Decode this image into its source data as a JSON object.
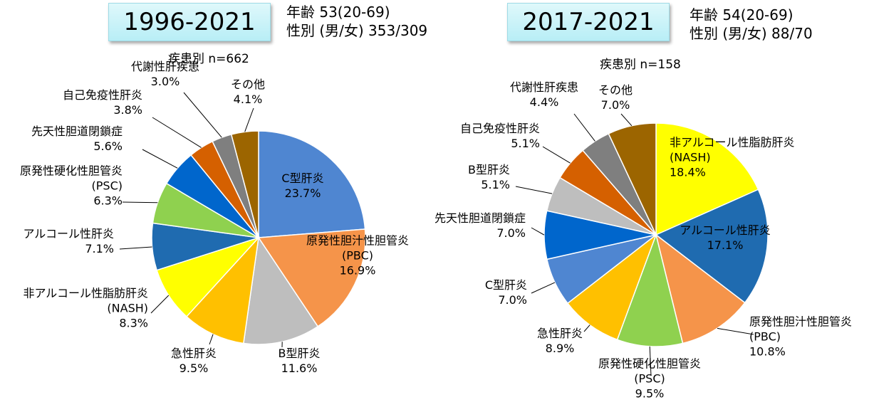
{
  "charts": [
    {
      "period": "1996-2021",
      "age_line": "年齢 53(20-69)",
      "sex_line": "性別 (男/女) 353/309",
      "subtitle": "疾患別 n=662"
    },
    {
      "period": "2017-2021",
      "age_line": "年齢 54(20-69)",
      "sex_line": "性別 (男/女) 88/70",
      "subtitle": "疾患別 n=158"
    }
  ],
  "chart_data": [
    {
      "type": "pie",
      "title": "1996-2021",
      "slices": [
        {
          "label": [
            "C型肝炎"
          ],
          "value": 23.7,
          "display": "23.7%",
          "color": "#4f86d1"
        },
        {
          "label": [
            "原発性胆汁性胆管炎",
            "(PBC)"
          ],
          "value": 16.9,
          "display": "16.9%",
          "color": "#f5944a"
        },
        {
          "label": [
            "B型肝炎"
          ],
          "value": 11.6,
          "display": "11.6%",
          "color": "#bebebe"
        },
        {
          "label": [
            "急性肝炎"
          ],
          "value": 9.5,
          "display": "9.5%",
          "color": "#ffc000"
        },
        {
          "label": [
            "非アルコール性脂肪肝炎",
            "(NASH)"
          ],
          "value": 8.3,
          "display": "8.3%",
          "color": "#ffff00"
        },
        {
          "label": [
            "アルコール性肝炎"
          ],
          "value": 7.1,
          "display": "7.1%",
          "color": "#1f6bb0"
        },
        {
          "label": [
            "原発性硬化性胆管炎",
            "(PSC)"
          ],
          "value": 6.3,
          "display": "6.3%",
          "color": "#8fd14f"
        },
        {
          "label": [
            "先天性胆道閉鎖症"
          ],
          "value": 5.6,
          "display": "5.6%",
          "color": "#0066cc"
        },
        {
          "label": [
            "自己免疫性肝炎"
          ],
          "value": 3.8,
          "display": "3.8%",
          "color": "#d56000"
        },
        {
          "label": [
            "代謝性肝疾患"
          ],
          "value": 3.0,
          "display": "3.0%",
          "color": "#7f7f7f"
        },
        {
          "label": [
            "その他"
          ],
          "value": 4.1,
          "display": "4.1%",
          "color": "#9c6500"
        }
      ]
    },
    {
      "type": "pie",
      "title": "2017-2021",
      "slices": [
        {
          "label": [
            "非アルコール性脂肪肝炎",
            "(NASH)"
          ],
          "value": 18.4,
          "display": "18.4%",
          "color": "#ffff00"
        },
        {
          "label": [
            "アルコール性肝炎"
          ],
          "value": 17.1,
          "display": "17.1%",
          "color": "#1f6bb0"
        },
        {
          "label": [
            "原発性胆汁性胆管炎",
            "(PBC)"
          ],
          "value": 10.8,
          "display": "10.8%",
          "color": "#f5944a"
        },
        {
          "label": [
            "原発性硬化性胆管炎",
            "(PSC)"
          ],
          "value": 9.5,
          "display": "9.5%",
          "color": "#8fd14f"
        },
        {
          "label": [
            "急性肝炎"
          ],
          "value": 8.9,
          "display": "8.9%",
          "color": "#ffc000"
        },
        {
          "label": [
            "C型肝炎"
          ],
          "value": 7.0,
          "display": "7.0%",
          "color": "#4f86d1"
        },
        {
          "label": [
            "先天性胆道閉鎖症"
          ],
          "value": 7.0,
          "display": "7.0%",
          "color": "#0066cc"
        },
        {
          "label": [
            "B型肝炎"
          ],
          "value": 5.1,
          "display": "5.1%",
          "color": "#bebebe"
        },
        {
          "label": [
            "自己免疫性肝炎"
          ],
          "value": 5.1,
          "display": "5.1%",
          "color": "#d56000"
        },
        {
          "label": [
            "代謝性肝疾患"
          ],
          "value": 4.4,
          "display": "4.4%",
          "color": "#7f7f7f"
        },
        {
          "label": [
            "その他"
          ],
          "value": 7.0,
          "display": "7.0%",
          "color": "#9c6500"
        }
      ]
    }
  ]
}
